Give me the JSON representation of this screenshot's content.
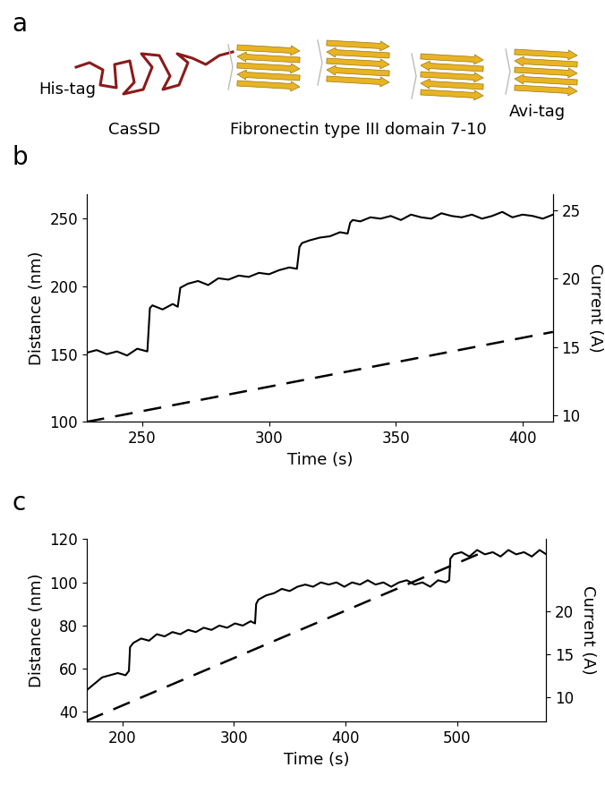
{
  "diagram": {
    "panel": "a",
    "nodes": [
      {
        "label": "His-tag"
      },
      {
        "label": "CasSD"
      },
      {
        "label": "Fibronectin type III domain 7-10"
      },
      {
        "label": "Avi-tag"
      }
    ]
  },
  "chart_data": [
    {
      "type": "line",
      "panel": "b",
      "xlabel": "Time (s)",
      "ylabel": "Distance (nm)",
      "y2label": "Current (A)",
      "xlim": [
        228,
        412
      ],
      "xticks": [
        250,
        300,
        350,
        400
      ],
      "ylim": [
        100,
        268
      ],
      "yticks": [
        100,
        150,
        200,
        250
      ],
      "y2lim": [
        9.5,
        26.2
      ],
      "y2ticks": [
        10,
        15,
        20,
        25
      ],
      "series": [
        {
          "color": "#000000",
          "line_style": "solid",
          "x": [
            228,
            232,
            236,
            240,
            244,
            248,
            252,
            253,
            254,
            258,
            262,
            264,
            265,
            268,
            272,
            276,
            280,
            284,
            288,
            292,
            296,
            300,
            304,
            308,
            311,
            312,
            313,
            316,
            320,
            324,
            328,
            331,
            332,
            333,
            336,
            340,
            344,
            348,
            352,
            356,
            360,
            364,
            368,
            372,
            376,
            380,
            384,
            388,
            392,
            396,
            400,
            404,
            408,
            412
          ],
          "values": [
            151,
            153,
            150,
            152,
            149,
            154,
            152,
            184,
            186,
            183,
            187,
            185,
            199,
            202,
            204,
            201,
            206,
            205,
            208,
            207,
            210,
            209,
            212,
            214,
            213,
            229,
            232,
            234,
            236,
            237,
            240,
            239,
            247,
            249,
            248,
            251,
            250,
            252,
            249,
            253,
            251,
            250,
            254,
            252,
            251,
            253,
            250,
            252,
            255,
            251,
            253,
            252,
            250,
            253
          ]
        },
        {
          "color": "#000000",
          "line_style": "dashed",
          "axis": "y2",
          "x": [
            228,
            412
          ],
          "values": [
            9.5,
            16.1
          ]
        }
      ]
    },
    {
      "type": "line",
      "panel": "c",
      "xlabel": "Time (s)",
      "ylabel": "Distance (nm)",
      "y2label": "Current (A)",
      "xlim": [
        168,
        580
      ],
      "xticks": [
        200,
        300,
        400,
        500
      ],
      "ylim": [
        35.5,
        120
      ],
      "yticks": [
        40,
        60,
        80,
        100,
        120
      ],
      "y2lim": [
        7.2,
        28.3
      ],
      "y2ticks": [
        10,
        15,
        20
      ],
      "series": [
        {
          "color": "#000000",
          "line_style": "solid",
          "x": [
            168,
            175,
            182,
            189,
            196,
            203,
            206,
            207,
            210,
            217,
            224,
            231,
            238,
            245,
            252,
            259,
            266,
            273,
            280,
            287,
            294,
            301,
            308,
            315,
            319,
            320,
            322,
            329,
            336,
            343,
            350,
            357,
            364,
            371,
            378,
            385,
            392,
            399,
            406,
            413,
            420,
            427,
            434,
            441,
            448,
            455,
            462,
            469,
            476,
            483,
            490,
            493,
            494,
            497,
            504,
            511,
            518,
            525,
            532,
            539,
            546,
            553,
            560,
            567,
            574,
            580
          ],
          "values": [
            50,
            53,
            56,
            57,
            58,
            57,
            59,
            70,
            72,
            74,
            73,
            76,
            75,
            77,
            76,
            78,
            77,
            79,
            78,
            80,
            79,
            81,
            80,
            82,
            81,
            90,
            92,
            94,
            95,
            97,
            96,
            98,
            99,
            98,
            100,
            99,
            100,
            98,
            100,
            99,
            101,
            99,
            100,
            98,
            100,
            101,
            99,
            100,
            98,
            101,
            100,
            101,
            111,
            113,
            114,
            112,
            115,
            113,
            114,
            112,
            115,
            113,
            114,
            112,
            115,
            113
          ]
        },
        {
          "color": "#000000",
          "line_style": "dashed",
          "axis": "y2",
          "x": [
            168,
            525
          ],
          "values": [
            7.3,
            26.9
          ]
        }
      ]
    }
  ]
}
